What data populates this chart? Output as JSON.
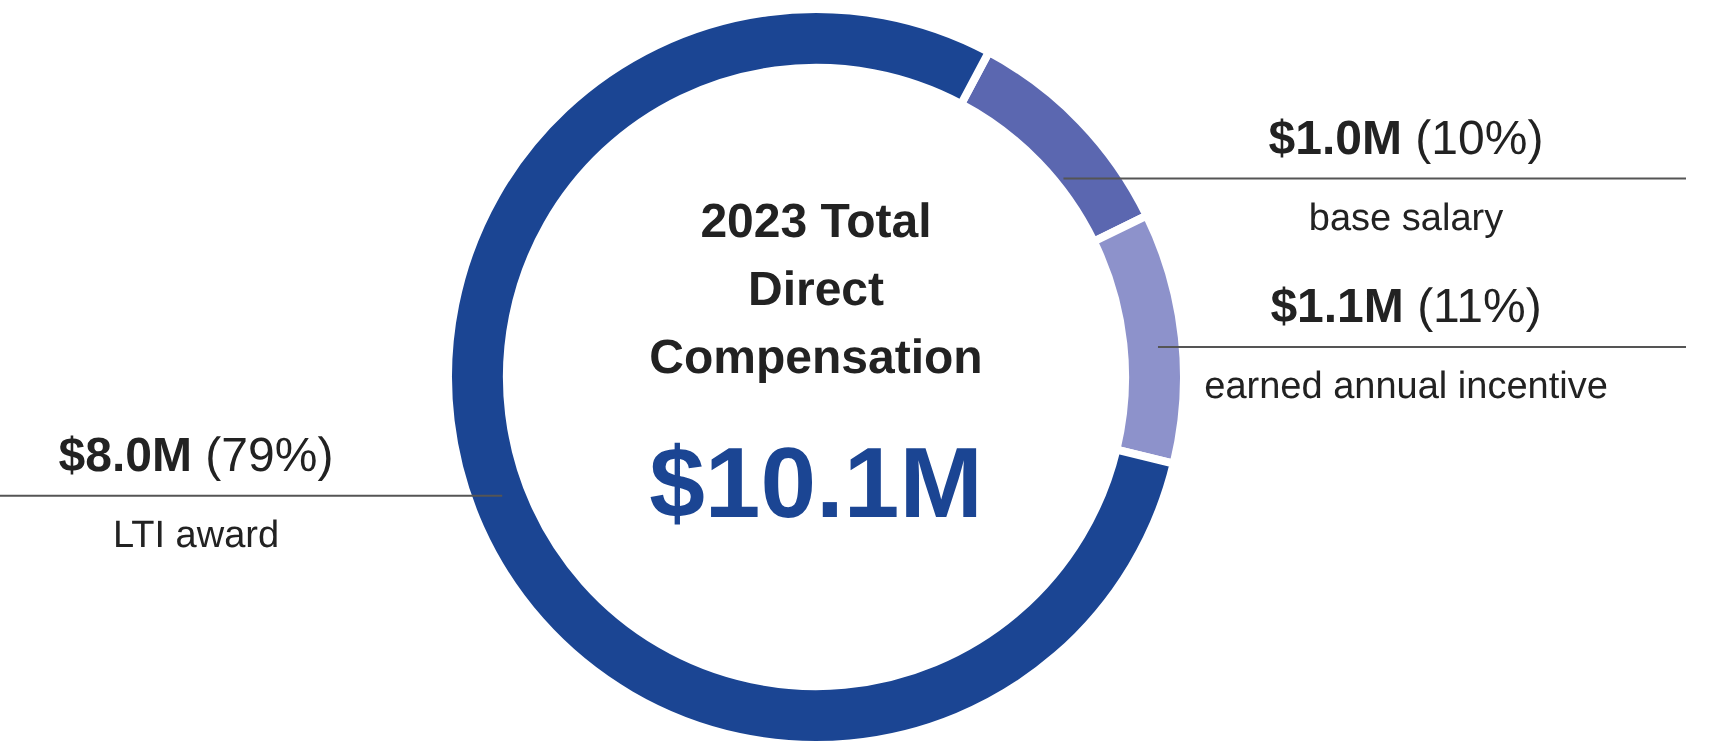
{
  "chart_data": {
    "type": "donut",
    "title": "2023 Total Direct Compensation",
    "categories": [
      "base salary",
      "earned annual incentive",
      "LTI award"
    ],
    "values": [
      10,
      11,
      79
    ],
    "value_labels": [
      "$1.0M (10%)",
      "$1.1M (11%)",
      "$8.0M (79%)"
    ],
    "colors": [
      "#5b67b0",
      "#8d92cb",
      "#1b4593"
    ],
    "annotations": [
      "$10.1M"
    ],
    "legend": false
  }
}
